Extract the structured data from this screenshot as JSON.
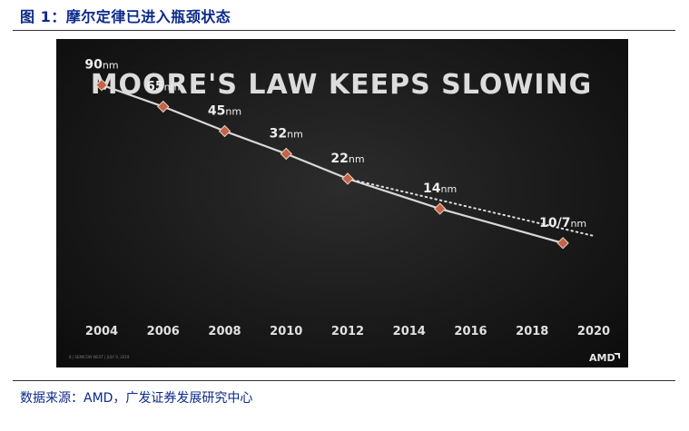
{
  "figure": {
    "label": "图 1：摩尔定律已进入瓶颈状态",
    "source": "数据来源：AMD，广发证券发展研究中心"
  },
  "colors": {
    "marker": "#c0654a",
    "line": "#d9d9d9",
    "panel": "#1a1a1a"
  },
  "chart_data": {
    "type": "line",
    "title": "MOORE'S LAW KEEPS SLOWING",
    "xlim": [
      2004,
      2020
    ],
    "ylim": [
      0,
      100
    ],
    "x_ticks": [
      "2004",
      "2006",
      "2008",
      "2010",
      "2012",
      "2014",
      "2016",
      "2018",
      "2020"
    ],
    "series": [
      {
        "points": [
          {
            "x": 2004,
            "num": "90",
            "unit": "nm"
          },
          {
            "x": 2006,
            "num": "65",
            "unit": "nm"
          },
          {
            "x": 2008,
            "num": "45",
            "unit": "nm"
          },
          {
            "x": 2010,
            "num": "32",
            "unit": "nm"
          },
          {
            "x": 2012,
            "num": "22",
            "unit": "nm"
          },
          {
            "x": 2015,
            "num": "14",
            "unit": "nm"
          },
          {
            "x": 2019,
            "num": "10/7",
            "unit": "nm"
          }
        ]
      }
    ],
    "trend_extrapolation": {
      "style": "dotted",
      "from_x": 2012,
      "to_x": 2020
    },
    "footer_left": "8  |  SEMICON WEST  |  JULY 9, 2019",
    "logo": "AMD"
  }
}
